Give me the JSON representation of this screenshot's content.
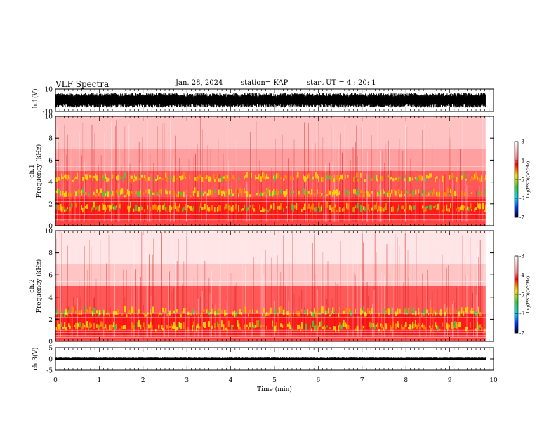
{
  "header": {
    "title": "VLF Spectra",
    "date": "Jan. 28, 2024",
    "station": "station= KAP",
    "start_ut": "start  UT  =   4 : 20: 1"
  },
  "chart_data": [
    {
      "type": "line",
      "panel": "ch1-waveform",
      "ylabel": "ch.1(V)",
      "ylim": [
        -10,
        10
      ],
      "yticks": [
        "10",
        "-10"
      ],
      "xlim": [
        0,
        10
      ],
      "x_extent": 9.82,
      "amplitude_range": [
        -6.5,
        6.5
      ]
    },
    {
      "type": "heatmap",
      "panel": "ch1-spectrogram",
      "ylabel": "ch.1\nFrequency (kHz)",
      "ylim": [
        0,
        10
      ],
      "yticks": [
        "0",
        "2",
        "4",
        "6",
        "8",
        "10"
      ],
      "xlim": [
        0,
        10
      ],
      "x_extent": 9.82,
      "colorbar": {
        "label": "log(PSD)(V²/Hz)",
        "range": [
          -7,
          -3
        ],
        "ticks": [
          "-3",
          "-4",
          "-5",
          "-6",
          "-7"
        ]
      }
    },
    {
      "type": "heatmap",
      "panel": "ch2-spectrogram",
      "ylabel": "ch.2\nFrequency (kHz)",
      "ylim": [
        0,
        10
      ],
      "yticks": [
        "0",
        "2",
        "4",
        "6",
        "8",
        "10"
      ],
      "xlim": [
        0,
        10
      ],
      "x_extent": 9.82,
      "colorbar": {
        "label": "log(PSD)(V²/Hz)",
        "range": [
          -7,
          -3
        ],
        "ticks": [
          "-3",
          "-4",
          "-5",
          "-6",
          "-7"
        ]
      }
    },
    {
      "type": "line",
      "panel": "ch3-waveform",
      "ylabel": "ch.3(V)",
      "ylim": [
        -5,
        5
      ],
      "yticks": [
        "5",
        "0",
        "-5"
      ],
      "xlim": [
        0,
        10
      ],
      "x_extent": 9.82,
      "amplitude_range": [
        -0.6,
        0.6
      ],
      "xlabel": "Time (min)",
      "xticks": [
        "0",
        "1",
        "2",
        "3",
        "4",
        "5",
        "6",
        "7",
        "8",
        "9",
        "10"
      ]
    }
  ],
  "colors": {
    "low": "#ffffff",
    "mid": "#ff2020",
    "high": "#ffe000",
    "peak": "#30d030",
    "waveform": "#000000"
  }
}
